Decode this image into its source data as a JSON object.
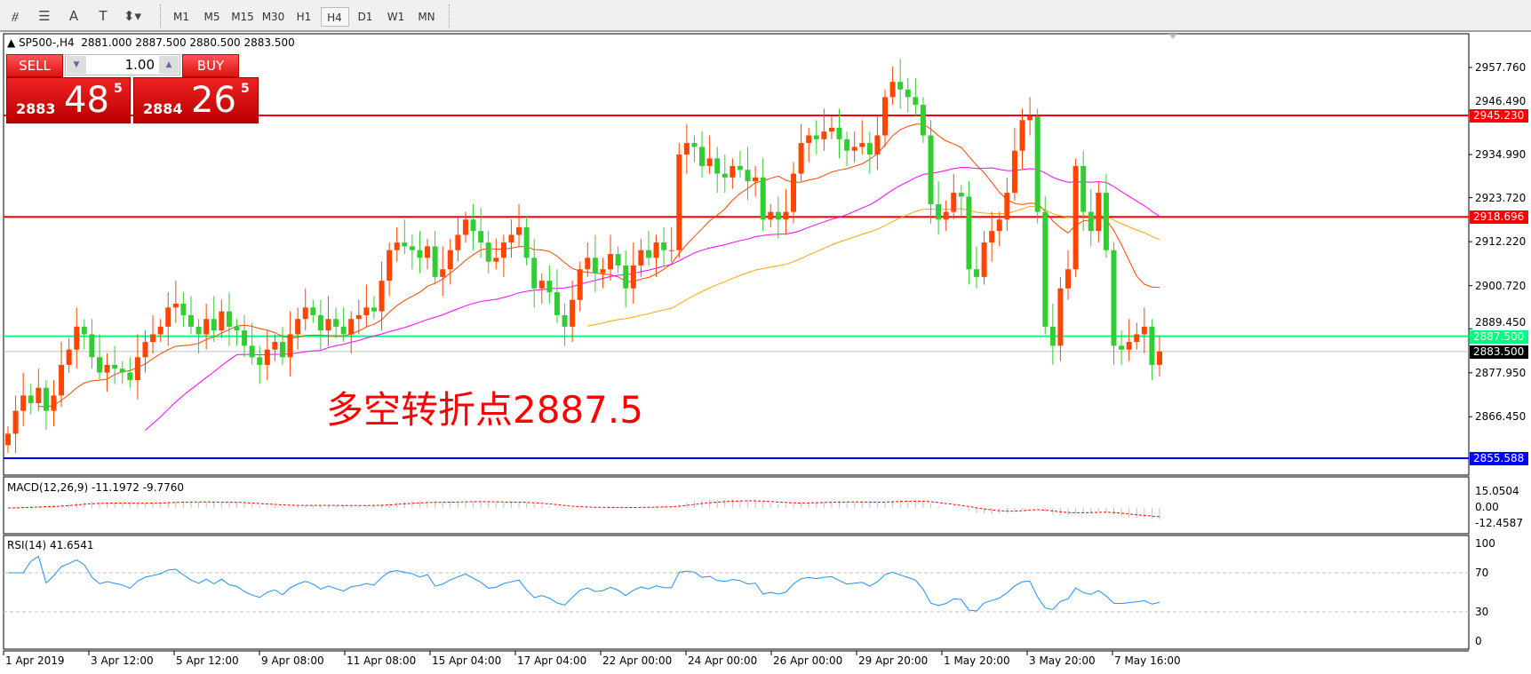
{
  "toolbar": {
    "icons": [
      "indicators-icon",
      "fibonacci-icon",
      "text-icon",
      "text-label-icon",
      "arrows-icon"
    ],
    "timeframes": [
      "M1",
      "M5",
      "M15",
      "M30",
      "H1",
      "H4",
      "D1",
      "W1",
      "MN"
    ],
    "active_timeframe": "H4"
  },
  "header": {
    "symbol": "SP500-,H4",
    "ohlc": "2881.000 2887.500 2880.500 2883.500"
  },
  "trade_panel": {
    "sell_label": "SELL",
    "buy_label": "BUY",
    "lot": "1.00",
    "sell_price": {
      "prefix": "2883",
      "big": "48",
      "sup": "5"
    },
    "buy_price": {
      "prefix": "2884",
      "big": "26",
      "sup": "5"
    }
  },
  "annotation": "多空转折点2887.5",
  "colors": {
    "bull": "#ff4500",
    "bear": "#32cd32",
    "ma_fast": "#ff4500",
    "ma_mid": "#ff00ff",
    "ma_slow": "#ffa500",
    "rsi": "#1e90ff",
    "macd_signal": "#ff0000"
  },
  "price_axis": {
    "ticks": [
      "2957.760",
      "2946.490",
      "2934.990",
      "2923.720",
      "2912.220",
      "2900.720",
      "2889.450",
      "2877.950",
      "2866.450"
    ]
  },
  "hlines": [
    {
      "price": 2945.23,
      "label": "2945.230",
      "color": "#ff0000"
    },
    {
      "price": 2918.696,
      "label": "2918.696",
      "color": "#ff0000"
    },
    {
      "price": 2887.5,
      "label": "2887.500",
      "color": "#00ff7f"
    },
    {
      "price": 2883.5,
      "label": "2883.500",
      "color": "#c0c0c0",
      "tag_color": "#000000"
    },
    {
      "price": 2855.588,
      "label": "2855.588",
      "color": "#0000ff"
    }
  ],
  "macd": {
    "label": "MACD(12,26,9) -11.1972 -9.7760",
    "ticks": [
      "15.0504",
      "0.00",
      "-12.4587"
    ]
  },
  "rsi": {
    "label": "RSI(14) 41.6541",
    "ticks": [
      "100",
      "70",
      "30",
      "0"
    ]
  },
  "time_axis": [
    "1 Apr 2019",
    "3 Apr 12:00",
    "5 Apr 12:00",
    "9 Apr 08:00",
    "11 Apr 08:00",
    "15 Apr 04:00",
    "17 Apr 04:00",
    "22 Apr 00:00",
    "24 Apr 00:00",
    "26 Apr 00:00",
    "29 Apr 20:00",
    "1 May 20:00",
    "3 May 20:00",
    "7 May 16:00"
  ],
  "chart_data": {
    "type": "candlestick",
    "closes": [
      2862,
      2868,
      2872,
      2870,
      2874,
      2868,
      2872,
      2880,
      2884,
      2890,
      2888,
      2882,
      2878,
      2880,
      2879,
      2878,
      2876,
      2882,
      2886,
      2888,
      2890,
      2895,
      2896,
      2893,
      2890,
      2888,
      2892,
      2889,
      2894,
      2890,
      2889,
      2885,
      2882,
      2880,
      2884,
      2886,
      2882,
      2888,
      2892,
      2895,
      2893,
      2889,
      2892,
      2890,
      2888,
      2892,
      2893,
      2895,
      2894,
      2902,
      2910,
      2912,
      2911,
      2910,
      2908,
      2911,
      2903,
      2905,
      2910,
      2914,
      2918,
      2915,
      2912,
      2907,
      2908,
      2912,
      2914,
      2916,
      2908,
      2900,
      2902,
      2899,
      2893,
      2890,
      2897,
      2905,
      2908,
      2904,
      2905,
      2909,
      2906,
      2900,
      2906,
      2910,
      2908,
      2912,
      2910,
      2910,
      2935,
      2938,
      2937,
      2932,
      2934,
      2930,
      2929,
      2932,
      2931,
      2928,
      2929,
      2918,
      2920,
      2918,
      2920,
      2930,
      2938,
      2940,
      2939,
      2941,
      2942,
      2939,
      2936,
      2937,
      2938,
      2935,
      2940,
      2950,
      2954,
      2952,
      2950,
      2948,
      2940,
      2922,
      2918,
      2920,
      2925,
      2924,
      2905,
      2903,
      2912,
      2915,
      2918,
      2925,
      2936,
      2944,
      2945,
      2920,
      2890,
      2885,
      2900,
      2905,
      2932,
      2920,
      2915,
      2925,
      2910,
      2885,
      2884,
      2886,
      2888,
      2890,
      2880,
      2883.5
    ]
  }
}
